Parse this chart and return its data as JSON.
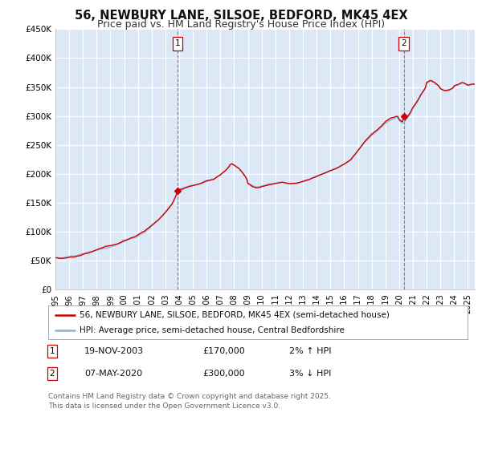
{
  "title": "56, NEWBURY LANE, SILSOE, BEDFORD, MK45 4EX",
  "subtitle": "Price paid vs. HM Land Registry's House Price Index (HPI)",
  "ylabel_ticks": [
    "£0",
    "£50K",
    "£100K",
    "£150K",
    "£200K",
    "£250K",
    "£300K",
    "£350K",
    "£400K",
    "£450K"
  ],
  "ytick_values": [
    0,
    50000,
    100000,
    150000,
    200000,
    250000,
    300000,
    350000,
    400000,
    450000
  ],
  "ylim": [
    0,
    450000
  ],
  "xlim_start": 1995.0,
  "xlim_end": 2025.5,
  "bg_color": "#dce8f5",
  "grid_color": "#ffffff",
  "hpi_color": "#8ab4d8",
  "price_color": "#cc0000",
  "marker1_x": 2003.88,
  "marker1_y": 170000,
  "marker2_x": 2020.35,
  "marker2_y": 300000,
  "legend1": "56, NEWBURY LANE, SILSOE, BEDFORD, MK45 4EX (semi-detached house)",
  "legend2": "HPI: Average price, semi-detached house, Central Bedfordshire",
  "annotation1_date": "19-NOV-2003",
  "annotation1_price": "£170,000",
  "annotation1_hpi": "2% ↑ HPI",
  "annotation2_date": "07-MAY-2020",
  "annotation2_price": "£300,000",
  "annotation2_hpi": "3% ↓ HPI",
  "footer": "Contains HM Land Registry data © Crown copyright and database right 2025.\nThis data is licensed under the Open Government Licence v3.0.",
  "title_fontsize": 10.5,
  "subtitle_fontsize": 9,
  "tick_fontsize": 7.5,
  "legend_fontsize": 7.5,
  "annot_fontsize": 8,
  "footer_fontsize": 6.5
}
